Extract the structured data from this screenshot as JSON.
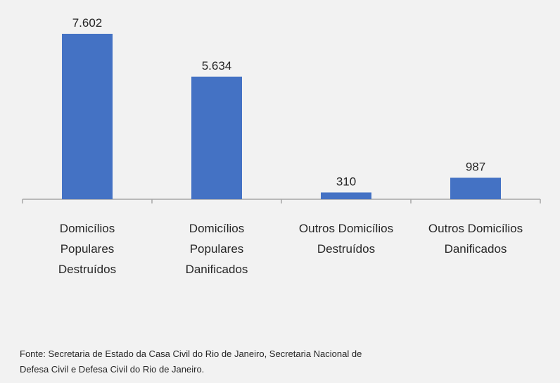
{
  "chart_data": {
    "type": "bar",
    "categories": [
      [
        "Domicílios",
        "Populares",
        "Destruídos"
      ],
      [
        "Domicílios",
        "Populares",
        "Danificados"
      ],
      [
        "Outros Domicílios",
        "Destruídos"
      ],
      [
        "Outros Domicílios",
        "Danificados"
      ]
    ],
    "values": [
      7602,
      5634,
      310,
      987
    ],
    "value_labels": [
      "7.602",
      "5.634",
      "310",
      "987"
    ],
    "ylim": [
      0,
      7602
    ],
    "bar_color": "#4472c4",
    "axis_color": "#a6a6a6",
    "grid": false,
    "legend": "none"
  },
  "source_lines": [
    "Fonte:  Secretaria de Estado da Casa Civil do Rio de Janeiro, Secretaria Nacional de",
    "Defesa Civil e Defesa Civil do Rio de Janeiro."
  ]
}
